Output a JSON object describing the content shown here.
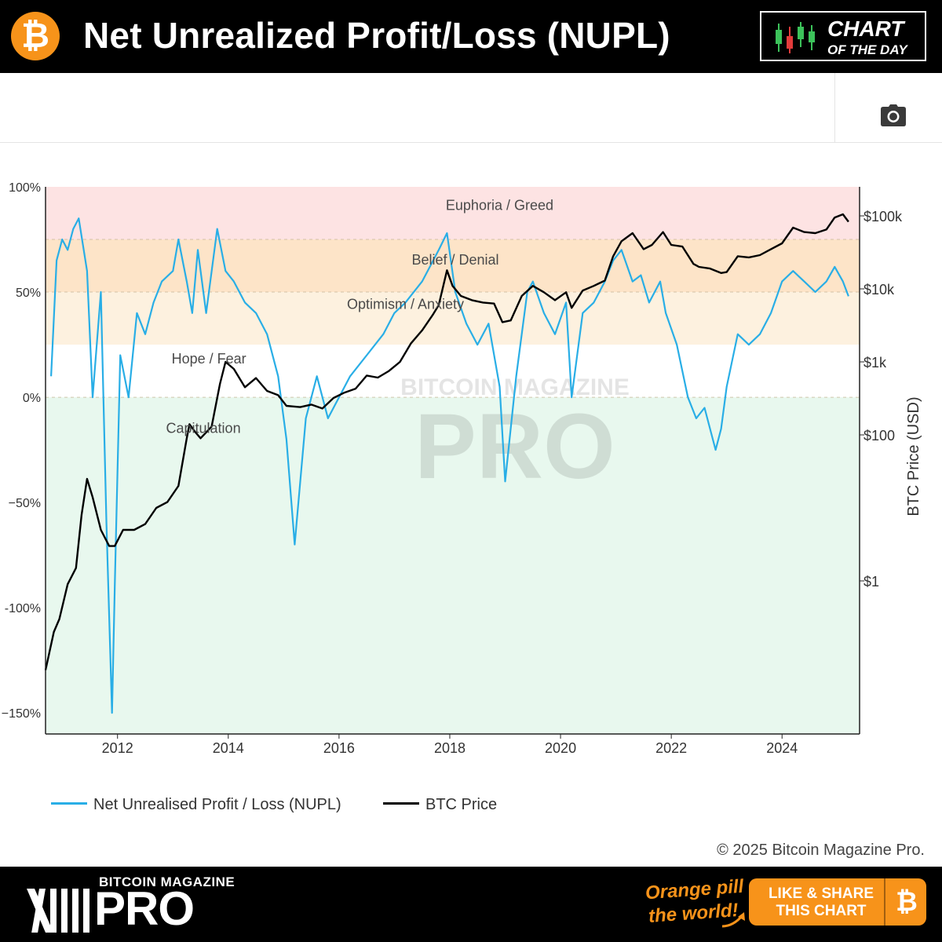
{
  "header": {
    "title": "Net Unrealized Profit/Loss (NUPL)",
    "btc_symbol": "₿",
    "badge_line1": "CHART",
    "badge_line2": "OF THE DAY"
  },
  "colors": {
    "nupl": "#29aee6",
    "price": "#000000",
    "accent": "#f7931a",
    "zone_euphoria": "#fde3e3",
    "zone_belief": "#fde4c8",
    "zone_optimism": "#fdf1df",
    "zone_hope": "#ffffff",
    "zone_capitulation": "#e8f8ee"
  },
  "watermark": {
    "line1": "BITCOIN MAGAZINE",
    "line2": "PRO"
  },
  "chart_data": {
    "type": "line",
    "title": "Net Unrealized Profit/Loss (NUPL)",
    "x_range": [
      2010.7,
      2025.4
    ],
    "x_ticks": [
      2012,
      2014,
      2016,
      2018,
      2020,
      2022,
      2024
    ],
    "x_tick_labels": [
      "2012",
      "2014",
      "2016",
      "2018",
      "2020",
      "2022",
      "2024"
    ],
    "y_left": {
      "range": [
        -160,
        100
      ],
      "ticks": [
        100,
        50,
        0,
        -50,
        -100,
        -150
      ],
      "tick_labels": [
        "100%",
        "50%",
        "0%",
        "−50%",
        "-100%",
        "−150%"
      ]
    },
    "y_right": {
      "label": "BTC Price (USD)",
      "scale": "log",
      "range": [
        0.008,
        250000
      ],
      "ticks": [
        100000,
        10000,
        1000,
        100,
        1
      ],
      "tick_labels": [
        "$100k",
        "$10k",
        "$1k",
        "$100",
        "$1"
      ]
    },
    "zones": [
      {
        "name": "Euphoria / Greed",
        "from": 75,
        "to": 100
      },
      {
        "name": "Belief / Denial",
        "from": 50,
        "to": 75
      },
      {
        "name": "Optimism / Anxiety",
        "from": 25,
        "to": 50
      },
      {
        "name": "Hope / Fear",
        "from": 0,
        "to": 25
      },
      {
        "name": "Capitulation",
        "from": -160,
        "to": 0
      }
    ],
    "zone_labels": [
      {
        "text": "Euphoria / Greed",
        "x": 2018.9,
        "y": 89
      },
      {
        "text": "Belief / Denial",
        "x": 2018.1,
        "y": 63
      },
      {
        "text": "Optimism / Anxiety",
        "x": 2017.2,
        "y": 42
      },
      {
        "text": "Hope / Fear",
        "x": 2013.65,
        "y": 16
      },
      {
        "text": "Capitulation",
        "x": 2013.55,
        "y": -17
      }
    ],
    "series": [
      {
        "name": "Net Unrealised Profit / Loss (NUPL)",
        "unit": "percent",
        "x": [
          2010.8,
          2010.9,
          2011.0,
          2011.1,
          2011.2,
          2011.3,
          2011.45,
          2011.55,
          2011.7,
          2011.8,
          2011.9,
          2011.95,
          2012.05,
          2012.2,
          2012.35,
          2012.5,
          2012.65,
          2012.8,
          2013.0,
          2013.1,
          2013.25,
          2013.35,
          2013.45,
          2013.6,
          2013.8,
          2013.95,
          2014.1,
          2014.3,
          2014.5,
          2014.7,
          2014.9,
          2015.05,
          2015.2,
          2015.4,
          2015.6,
          2015.8,
          2016.0,
          2016.2,
          2016.5,
          2016.8,
          2017.0,
          2017.2,
          2017.5,
          2017.8,
          2017.95,
          2018.1,
          2018.3,
          2018.5,
          2018.7,
          2018.9,
          2019.0,
          2019.2,
          2019.4,
          2019.5,
          2019.7,
          2019.9,
          2020.1,
          2020.2,
          2020.4,
          2020.6,
          2020.8,
          2020.95,
          2021.1,
          2021.3,
          2021.45,
          2021.6,
          2021.8,
          2021.9,
          2022.1,
          2022.3,
          2022.45,
          2022.6,
          2022.8,
          2022.9,
          2023.0,
          2023.2,
          2023.4,
          2023.6,
          2023.8,
          2024.0,
          2024.2,
          2024.4,
          2024.6,
          2024.8,
          2024.95,
          2025.1,
          2025.2
        ],
        "values": [
          10,
          65,
          75,
          70,
          80,
          85,
          60,
          0,
          50,
          -60,
          -150,
          -90,
          20,
          0,
          40,
          30,
          45,
          55,
          60,
          75,
          55,
          40,
          70,
          40,
          80,
          60,
          55,
          45,
          40,
          30,
          10,
          -20,
          -70,
          -10,
          10,
          -10,
          0,
          10,
          20,
          30,
          40,
          45,
          55,
          70,
          78,
          50,
          35,
          25,
          35,
          5,
          -40,
          10,
          50,
          55,
          40,
          30,
          45,
          0,
          40,
          45,
          55,
          65,
          70,
          55,
          58,
          45,
          55,
          40,
          25,
          0,
          -10,
          -5,
          -25,
          -15,
          5,
          30,
          25,
          30,
          40,
          55,
          60,
          55,
          50,
          55,
          62,
          55,
          48
        ]
      },
      {
        "name": "BTC Price",
        "unit": "USD",
        "x": [
          2010.7,
          2010.85,
          2010.95,
          2011.1,
          2011.25,
          2011.35,
          2011.45,
          2011.55,
          2011.7,
          2011.85,
          2011.95,
          2012.1,
          2012.3,
          2012.5,
          2012.7,
          2012.9,
          2013.1,
          2013.25,
          2013.3,
          2013.4,
          2013.5,
          2013.7,
          2013.85,
          2013.95,
          2014.1,
          2014.3,
          2014.5,
          2014.7,
          2014.9,
          2015.05,
          2015.3,
          2015.5,
          2015.7,
          2015.9,
          2016.1,
          2016.3,
          2016.5,
          2016.7,
          2016.9,
          2017.1,
          2017.3,
          2017.5,
          2017.7,
          2017.8,
          2017.95,
          2018.05,
          2018.2,
          2018.4,
          2018.6,
          2018.8,
          2018.95,
          2019.1,
          2019.3,
          2019.5,
          2019.7,
          2019.9,
          2020.1,
          2020.2,
          2020.4,
          2020.6,
          2020.8,
          2020.95,
          2021.1,
          2021.3,
          2021.5,
          2021.65,
          2021.85,
          2022.0,
          2022.2,
          2022.4,
          2022.5,
          2022.7,
          2022.9,
          2023.0,
          2023.2,
          2023.4,
          2023.6,
          2023.8,
          2024.0,
          2024.2,
          2024.4,
          2024.6,
          2024.8,
          2024.95,
          2025.1,
          2025.2
        ],
        "values": [
          0.06,
          0.2,
          0.3,
          0.9,
          1.5,
          8,
          25,
          14,
          5,
          3,
          3,
          5,
          5,
          6,
          10,
          12,
          20,
          90,
          140,
          110,
          90,
          130,
          500,
          1000,
          800,
          450,
          600,
          400,
          350,
          250,
          240,
          260,
          230,
          320,
          380,
          430,
          650,
          610,
          750,
          1000,
          1800,
          2700,
          4500,
          6000,
          18000,
          11000,
          8000,
          7000,
          6500,
          6300,
          3500,
          3700,
          8000,
          11000,
          9000,
          7000,
          9000,
          5500,
          9500,
          11000,
          13000,
          28000,
          45000,
          58000,
          35000,
          40000,
          60000,
          40000,
          38000,
          22000,
          20000,
          19000,
          16500,
          17000,
          28000,
          27000,
          29000,
          35000,
          42000,
          69000,
          60000,
          58000,
          65000,
          95000,
          105000,
          83000
        ]
      }
    ]
  },
  "legend": {
    "nupl_label": "Net Unrealised Profit / Loss (NUPL)",
    "price_label": "BTC Price"
  },
  "footer": {
    "copyright": "© 2025 Bitcoin Magazine Pro.",
    "brand_small": "BITCOIN MAGAZINE",
    "brand_big": "PRO",
    "slogan_line1": "Orange pill",
    "slogan_line2": "the world!",
    "share_line1": "LIKE & SHARE",
    "share_line2": "THIS CHART",
    "btc_symbol": "₿"
  }
}
